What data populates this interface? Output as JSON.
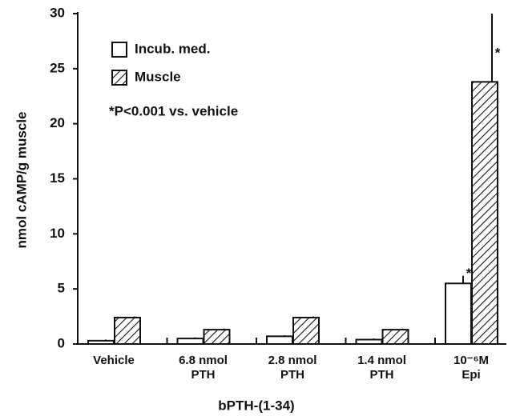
{
  "chart_data": {
    "type": "bar",
    "y_label": "nmol cAMP/g muscle",
    "x_label": "bPTH-(1-34)",
    "categories": [
      "Vehicle",
      "6.8 nmol\nPTH",
      "2.8 nmol\nPTH",
      "1.4 nmol\nPTH",
      "10⁻⁶M\nEpi"
    ],
    "series": [
      {
        "name": "Incub. med.",
        "color": "#ffffff",
        "hatch": false,
        "values": [
          0.3,
          0.5,
          0.7,
          0.4,
          5.5
        ],
        "errors": [
          0.1,
          0.1,
          0.1,
          0.1,
          0.7
        ],
        "significance": [
          null,
          null,
          null,
          null,
          "*"
        ]
      },
      {
        "name": "Muscle",
        "color": "#ffffff",
        "hatch": true,
        "values": [
          2.4,
          1.3,
          2.4,
          1.3,
          23.8
        ],
        "errors": [
          0.1,
          0.1,
          0.1,
          0.1,
          6.2
        ],
        "significance": [
          null,
          null,
          null,
          null,
          "*"
        ]
      }
    ],
    "annotation": "*P<0.001 vs. vehicle",
    "ylim": [
      0,
      30
    ],
    "yticks": [
      0,
      5,
      10,
      15,
      20,
      25,
      30
    ],
    "grid": false
  }
}
